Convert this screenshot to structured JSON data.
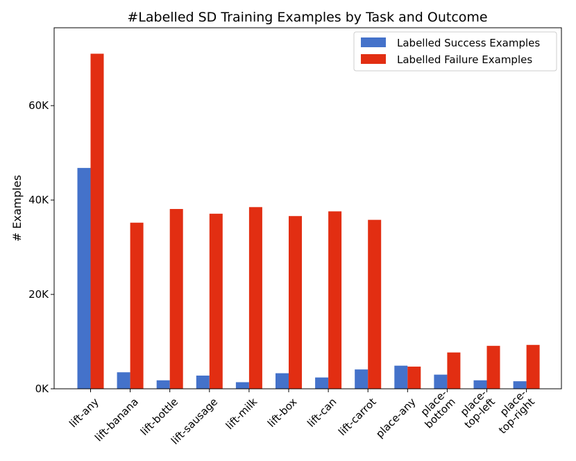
{
  "chart_data": {
    "type": "bar",
    "title": "#Labelled SD Training Examples by Task and Outcome",
    "xlabel": "",
    "ylabel": "# Examples",
    "ylim": [
      0,
      76500
    ],
    "yticks": [
      0,
      20000,
      40000,
      60000
    ],
    "ytick_labels": [
      "0K",
      "20K",
      "40K",
      "60K"
    ],
    "categories": [
      [
        "lift-any"
      ],
      [
        "lift-banana"
      ],
      [
        "lift-bottle"
      ],
      [
        "lift-sausage"
      ],
      [
        "lift-milk"
      ],
      [
        "lift-box"
      ],
      [
        "lift-can"
      ],
      [
        "lift-carrot"
      ],
      [
        "place-any"
      ],
      [
        "place-",
        "bottom"
      ],
      [
        "place-",
        "top-left"
      ],
      [
        "place-",
        "top-right"
      ]
    ],
    "series": [
      {
        "name": "Labelled Success Examples",
        "color": "#4472ca",
        "values": [
          46800,
          3500,
          1800,
          2800,
          1400,
          3300,
          2400,
          4100,
          4900,
          3000,
          1800,
          1600
        ]
      },
      {
        "name": "Labelled Failure Examples",
        "color": "#e22e12",
        "values": [
          71000,
          35200,
          38100,
          37100,
          38500,
          36600,
          37600,
          35800,
          4700,
          7700,
          9100,
          9300
        ]
      }
    ],
    "legend_position": "top-right",
    "grid": false
  }
}
